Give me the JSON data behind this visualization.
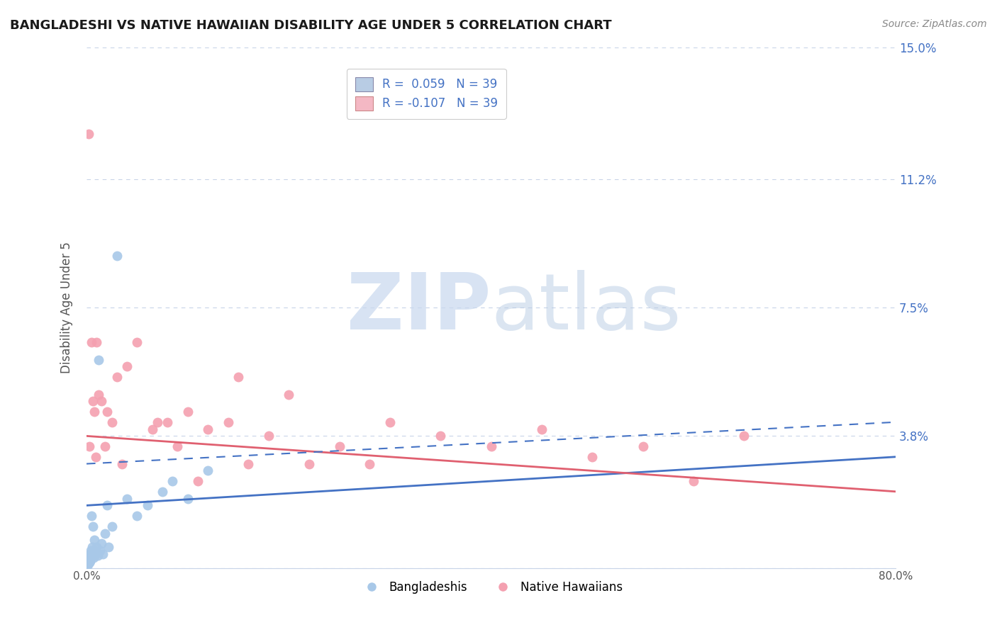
{
  "title": "BANGLADESHI VS NATIVE HAWAIIAN DISABILITY AGE UNDER 5 CORRELATION CHART",
  "source_text": "Source: ZipAtlas.com",
  "xmin": 0.0,
  "xmax": 80.0,
  "ymin": 0.0,
  "ymax": 15.0,
  "ylabel_ticks": [
    0.0,
    3.8,
    7.5,
    11.2,
    15.0
  ],
  "ylabel_tick_labels": [
    "",
    "3.8%",
    "7.5%",
    "11.2%",
    "15.0%"
  ],
  "legend_r1": "R =  0.059",
  "legend_r2": "R = -0.107",
  "legend_n1": "N = 39",
  "legend_n2": "N = 39",
  "label1": "Bangladeshis",
  "label2": "Native Hawaiians",
  "color1": "#a8c8e8",
  "color2": "#f4a0b0",
  "line_color1": "#4472c4",
  "line_color2": "#e06070",
  "watermark_zip": "ZIP",
  "watermark_atlas": "atlas",
  "background_color": "#ffffff",
  "grid_color": "#c8d4e8",
  "bangladeshi_x": [
    0.1,
    0.15,
    0.2,
    0.25,
    0.3,
    0.35,
    0.4,
    0.5,
    0.6,
    0.7,
    0.8,
    0.9,
    1.0,
    1.1,
    1.2,
    1.3,
    1.5,
    1.6,
    1.8,
    2.0,
    2.2,
    2.5,
    3.0,
    4.0,
    5.0,
    6.0,
    7.5,
    8.5,
    10.0,
    12.0,
    0.05,
    0.08,
    0.12,
    0.18,
    0.22,
    0.28,
    0.45,
    0.55,
    0.65
  ],
  "bangladeshi_y": [
    0.2,
    0.1,
    0.3,
    0.15,
    0.4,
    0.2,
    0.5,
    1.5,
    1.2,
    0.3,
    0.8,
    0.4,
    0.6,
    0.35,
    6.0,
    0.5,
    0.7,
    0.4,
    1.0,
    1.8,
    0.6,
    1.2,
    9.0,
    2.0,
    1.5,
    1.8,
    2.2,
    2.5,
    2.0,
    2.8,
    0.1,
    0.15,
    0.2,
    0.25,
    0.3,
    0.18,
    0.4,
    0.6,
    0.35
  ],
  "native_hawaiian_x": [
    0.2,
    0.5,
    0.8,
    1.0,
    1.2,
    1.5,
    2.0,
    2.5,
    3.0,
    4.0,
    5.0,
    6.5,
    8.0,
    10.0,
    12.0,
    15.0,
    18.0,
    20.0,
    22.0,
    25.0,
    30.0,
    35.0,
    40.0,
    45.0,
    50.0,
    55.0,
    60.0,
    65.0,
    0.3,
    0.6,
    0.9,
    1.8,
    3.5,
    7.0,
    9.0,
    11.0,
    14.0,
    16.0,
    28.0
  ],
  "native_hawaiian_y": [
    12.5,
    6.5,
    4.5,
    6.5,
    5.0,
    4.8,
    4.5,
    4.2,
    5.5,
    5.8,
    6.5,
    4.0,
    4.2,
    4.5,
    4.0,
    5.5,
    3.8,
    5.0,
    3.0,
    3.5,
    4.2,
    3.8,
    3.5,
    4.0,
    3.2,
    3.5,
    2.5,
    3.8,
    3.5,
    4.8,
    3.2,
    3.5,
    3.0,
    4.2,
    3.5,
    2.5,
    4.2,
    3.0,
    3.0
  ],
  "trendline_b_x0": 0.0,
  "trendline_b_x1": 80.0,
  "trendline_b_y0": 1.8,
  "trendline_b_y1": 3.2,
  "trendline_nh_x0": 0.0,
  "trendline_nh_x1": 80.0,
  "trendline_nh_y0": 3.8,
  "trendline_nh_y1": 2.2,
  "trendline_dash_x0": 0.0,
  "trendline_dash_x1": 80.0,
  "trendline_dash_y0": 3.0,
  "trendline_dash_y1": 4.2
}
